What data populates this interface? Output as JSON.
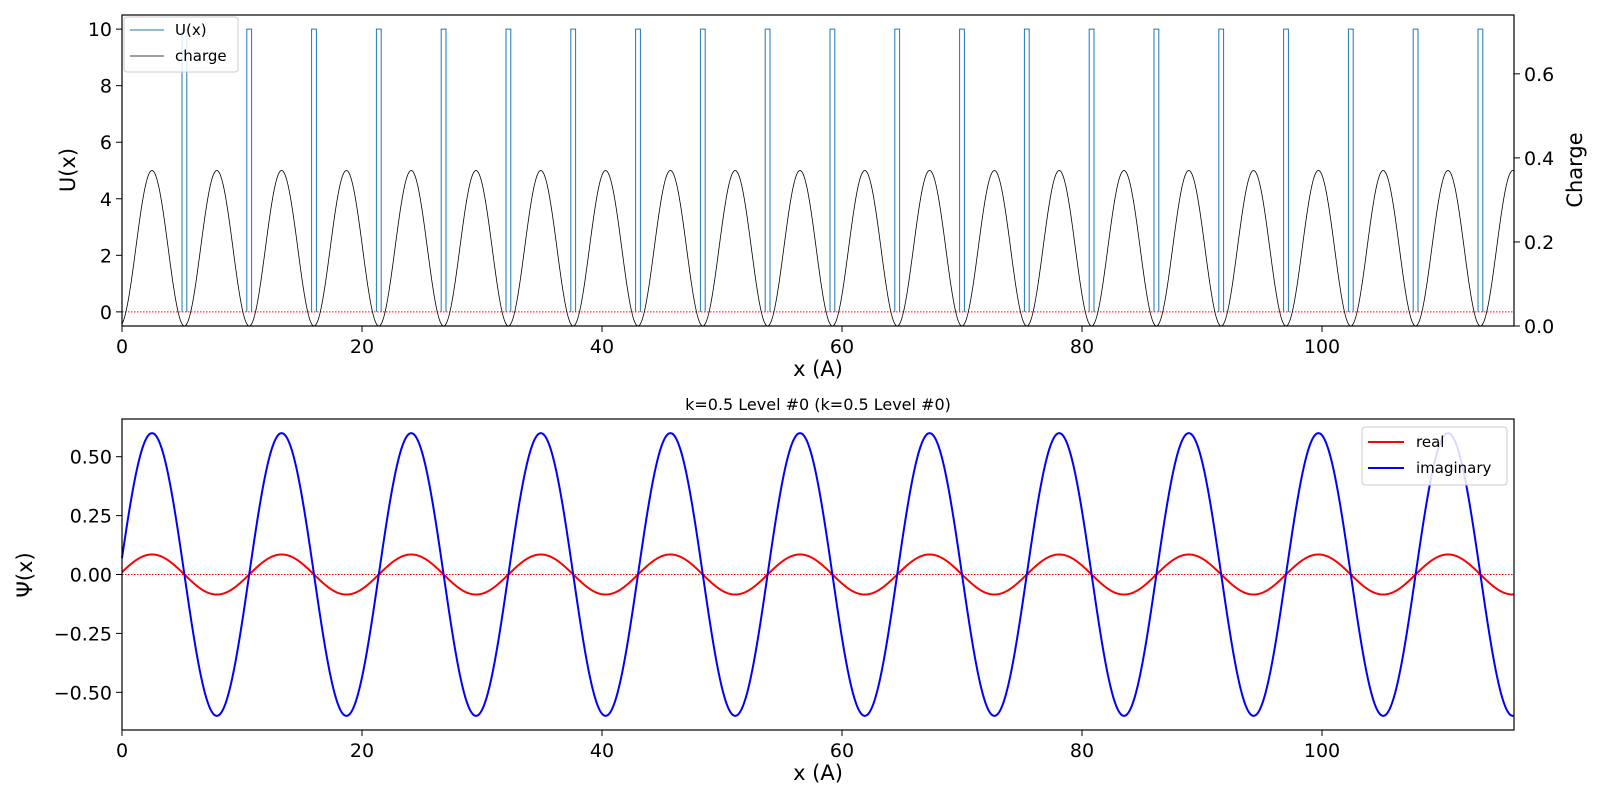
{
  "chart_data": [
    {
      "type": "line",
      "xlabel": "x (A)",
      "ylabel": "U(x)",
      "ylabel_right": "Charge",
      "xlim": [
        0,
        116
      ],
      "ylim": [
        -0.5,
        10.5
      ],
      "ylim_right": [
        0,
        0.74
      ],
      "xticks": [
        0,
        20,
        40,
        60,
        80,
        100
      ],
      "yticks": [
        0,
        2,
        4,
        6,
        8,
        10
      ],
      "yticks_right": [
        0.0,
        0.2,
        0.4,
        0.6
      ],
      "xtick_labels": [
        "0",
        "20",
        "40",
        "60",
        "80",
        "100"
      ],
      "ytick_labels": [
        "0",
        "2",
        "4",
        "6",
        "8",
        "10"
      ],
      "ytick_right_labels": [
        "0.0",
        "0.2",
        "0.4",
        "0.6"
      ],
      "legend_position": "top-left",
      "grid": false,
      "series": [
        {
          "name": "U(x)",
          "color": "#1f77b4",
          "kind": "periodic barriers",
          "period": 5.4,
          "barrier_positions": [
            5.0,
            10.4,
            15.8,
            21.2,
            26.6,
            32.0,
            37.4,
            42.8,
            48.2,
            53.6,
            59.0,
            64.4,
            69.8,
            75.2,
            80.6,
            86.0,
            91.4,
            96.8,
            102.2,
            107.6,
            113.0
          ],
          "barrier_width": 0.4,
          "barrier_height": 10,
          "baseline": 0
        },
        {
          "name": "charge",
          "color": "#000000",
          "axis": "right",
          "kind": "periodic",
          "period": 5.4,
          "maximum": 0.37,
          "peak_positions": [
            2.5,
            7.9,
            13.3,
            18.7,
            24.1,
            29.5,
            34.9,
            40.3,
            45.7,
            51.1,
            56.5,
            61.9,
            67.3,
            72.7,
            78.1,
            83.5,
            88.9,
            94.3,
            99.7,
            105.1,
            110.5,
            115.9
          ]
        },
        {
          "name": "",
          "color": "#ff0000",
          "style": "dotted",
          "y": 0
        }
      ]
    },
    {
      "type": "line",
      "title": "k=0.5 Level #0 (k=0.5 Level #0)",
      "xlabel": "x (A)",
      "ylabel": "Ψ(x)",
      "xlim": [
        0,
        116
      ],
      "ylim": [
        -0.66,
        0.66
      ],
      "xticks": [
        0,
        20,
        40,
        60,
        80,
        100
      ],
      "yticks": [
        0.5,
        0.25,
        0.0,
        -0.25,
        -0.5
      ],
      "xtick_labels": [
        "0",
        "20",
        "40",
        "60",
        "80",
        "100"
      ],
      "ytick_labels": [
        "0.50",
        "0.25",
        "0.00",
        "−0.25",
        "−0.50"
      ],
      "legend_position": "top-right",
      "grid": false,
      "series": [
        {
          "name": "real",
          "color": "#ff0000",
          "kind": "sinusoid",
          "amplitude": 0.085,
          "period": 10.8,
          "peak_positions": [
            2.5,
            13.3,
            24.1,
            34.9,
            45.7,
            56.5,
            67.3,
            78.1,
            88.9,
            99.7,
            110.5
          ]
        },
        {
          "name": "imaginary",
          "color": "#0000ff",
          "kind": "sinusoid",
          "amplitude": 0.6,
          "period": 10.8,
          "peak_positions": [
            2.5,
            13.3,
            24.1,
            34.9,
            45.7,
            56.5,
            67.3,
            78.1,
            88.9,
            99.7,
            110.5
          ]
        },
        {
          "name": "",
          "color": "#ff0000",
          "style": "dotted",
          "y": 0
        }
      ]
    }
  ]
}
